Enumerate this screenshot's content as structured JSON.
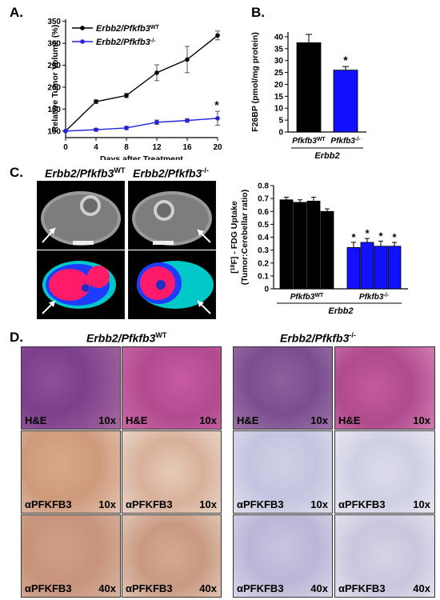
{
  "panel_labels": {
    "a": "A.",
    "b": "B.",
    "c": "C.",
    "d": "D."
  },
  "genotypes": {
    "wt_base": "Erbb2/Pfkfb3",
    "wt_sup": "WT",
    "ko_base": "Erbb2/Pfkfb3",
    "ko_sup": "-/-",
    "pfk_base": "Pfkfb3",
    "erbb2": "Erbb2"
  },
  "chart_data": [
    {
      "id": "A",
      "type": "line",
      "ylabel": "Relative Tumor Volume (%)",
      "xlabel": "Days after Treatment",
      "x": [
        0,
        4,
        8,
        12,
        16,
        20
      ],
      "xticks": [
        "0",
        "4",
        "8",
        "12",
        "16",
        "20"
      ],
      "yticks": [
        "100",
        "150",
        "200",
        "250",
        "300",
        "350"
      ],
      "ylim": [
        85,
        355
      ],
      "xlim": [
        0,
        20
      ],
      "series": [
        {
          "name": "Erbb2/Pfkfb3 WT",
          "color": "#000000",
          "values": [
            100,
            167,
            181,
            233,
            263,
            318
          ],
          "err": [
            0,
            4,
            5,
            18,
            30,
            10
          ]
        },
        {
          "name": "Erbb2/Pfkfb3 -/-",
          "color": "#2222dd",
          "values": [
            100,
            103,
            107,
            120,
            124,
            129
          ],
          "err": [
            0,
            3,
            4,
            5,
            4,
            16
          ]
        }
      ],
      "annotation": "*"
    },
    {
      "id": "B",
      "type": "bar",
      "ylabel": "F26BP (pmol/mg protein)",
      "yticks": [
        "0",
        "5",
        "10",
        "15",
        "20",
        "25",
        "30",
        "35",
        "40"
      ],
      "ylim": [
        0,
        42
      ],
      "categories": [
        "WT",
        "-/-"
      ],
      "values": [
        37.5,
        26
      ],
      "err": [
        3.5,
        1.5
      ],
      "colors": [
        "#000000",
        "#1111ff"
      ],
      "group_label": "Erbb2",
      "annotation": "*"
    },
    {
      "id": "C",
      "type": "bar",
      "ylabel_parts": [
        "[",
        "18",
        "F] - FDG Uptake"
      ],
      "ylabel2": "(Tumor:Cerebellar ratio)",
      "yticks": [
        "0",
        "0.1",
        "0.2",
        "0.3",
        "0.4",
        "0.5",
        "0.6",
        "0.7",
        "0.8"
      ],
      "ylim": [
        0,
        0.8
      ],
      "values": [
        0.69,
        0.67,
        0.68,
        0.6,
        0.32,
        0.36,
        0.33,
        0.33
      ],
      "err": [
        0.02,
        0.02,
        0.03,
        0.02,
        0.04,
        0.03,
        0.04,
        0.03
      ],
      "colors": [
        "#000000",
        "#000000",
        "#000000",
        "#000000",
        "#1111ff",
        "#1111ff",
        "#1111ff",
        "#1111ff"
      ],
      "group_label": "Erbb2",
      "annotation": "*"
    }
  ],
  "histology": {
    "he": "H&E",
    "pfk": "αPFKFB3",
    "mag10": "10x",
    "mag40": "40x"
  }
}
